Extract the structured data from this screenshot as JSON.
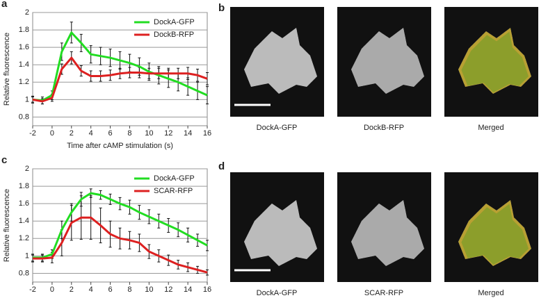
{
  "chart_data": [
    {
      "type": "line",
      "panel": "a",
      "xlabel": "Time after cAMP stimulation (s)",
      "ylabel": "Relative fluorescence",
      "x": [
        -2,
        -1,
        0,
        1,
        2,
        3,
        4,
        5,
        6,
        7,
        8,
        9,
        10,
        11,
        12,
        13,
        14,
        15,
        16
      ],
      "series": [
        {
          "name": "DockA-GFP",
          "color": "#22dd22",
          "values": [
            1.0,
            0.99,
            1.05,
            1.55,
            1.77,
            1.65,
            1.52,
            1.5,
            1.48,
            1.45,
            1.42,
            1.38,
            1.32,
            1.28,
            1.24,
            1.2,
            1.15,
            1.1,
            1.05
          ],
          "errors": [
            0.04,
            0.04,
            0.05,
            0.1,
            0.12,
            0.1,
            0.1,
            0.1,
            0.1,
            0.1,
            0.1,
            0.1,
            0.1,
            0.1,
            0.1,
            0.1,
            0.1,
            0.1,
            0.1
          ]
        },
        {
          "name": "DockB-RFP",
          "color": "#dd2020",
          "values": [
            1.0,
            0.98,
            1.02,
            1.35,
            1.48,
            1.33,
            1.27,
            1.27,
            1.28,
            1.3,
            1.31,
            1.31,
            1.3,
            1.3,
            1.3,
            1.3,
            1.3,
            1.28,
            1.24
          ],
          "errors": [
            0.03,
            0.03,
            0.04,
            0.06,
            0.07,
            0.06,
            0.06,
            0.06,
            0.06,
            0.06,
            0.06,
            0.06,
            0.06,
            0.06,
            0.06,
            0.06,
            0.07,
            0.07,
            0.07
          ]
        }
      ],
      "xlim": [
        -2,
        16
      ],
      "xticks": [
        -2,
        0,
        2,
        4,
        6,
        8,
        10,
        12,
        14,
        16
      ],
      "ylim": [
        0.7,
        2
      ],
      "yticks": [
        0.8,
        1,
        1.2,
        1.4,
        1.6,
        1.8,
        2
      ],
      "grid": true,
      "legend": "upper right"
    },
    {
      "type": "line",
      "panel": "c",
      "xlabel": "Time after cAMP stimulation (s)",
      "ylabel": "Relative fluorescence",
      "x": [
        -2,
        -1,
        0,
        1,
        2,
        3,
        4,
        5,
        6,
        7,
        8,
        9,
        10,
        11,
        12,
        13,
        14,
        15,
        16
      ],
      "series": [
        {
          "name": "DockA-GFP",
          "color": "#22dd22",
          "values": [
            0.98,
            0.98,
            1.02,
            1.3,
            1.5,
            1.65,
            1.72,
            1.7,
            1.65,
            1.6,
            1.56,
            1.5,
            1.45,
            1.4,
            1.35,
            1.3,
            1.24,
            1.18,
            1.12
          ],
          "errors": [
            0.04,
            0.04,
            0.05,
            0.1,
            0.1,
            0.08,
            0.05,
            0.05,
            0.06,
            0.07,
            0.08,
            0.08,
            0.08,
            0.08,
            0.08,
            0.08,
            0.08,
            0.07,
            0.06
          ]
        },
        {
          "name": "SCAR-RFP",
          "color": "#dd2020",
          "values": [
            0.97,
            0.97,
            0.98,
            1.15,
            1.38,
            1.44,
            1.44,
            1.35,
            1.25,
            1.2,
            1.18,
            1.15,
            1.05,
            1.0,
            0.95,
            0.9,
            0.87,
            0.84,
            0.81
          ],
          "errors": [
            0.04,
            0.04,
            0.06,
            0.15,
            0.2,
            0.25,
            0.25,
            0.2,
            0.15,
            0.12,
            0.1,
            0.1,
            0.08,
            0.07,
            0.06,
            0.05,
            0.05,
            0.04,
            0.03
          ]
        }
      ],
      "xlim": [
        -2,
        16
      ],
      "xticks": [
        -2,
        0,
        2,
        4,
        6,
        8,
        10,
        12,
        14,
        16
      ],
      "ylim": [
        0.7,
        2
      ],
      "yticks": [
        0.8,
        1,
        1.2,
        1.4,
        1.6,
        1.8,
        2
      ],
      "grid": true,
      "legend": "upper right"
    }
  ],
  "images": [
    {
      "panel": "b",
      "captions": [
        "DockA-GFP",
        "DockB-RFP",
        "Merged"
      ]
    },
    {
      "panel": "d",
      "captions": [
        "DockA-GFP",
        "SCAR-RFP",
        "Merged"
      ]
    }
  ]
}
